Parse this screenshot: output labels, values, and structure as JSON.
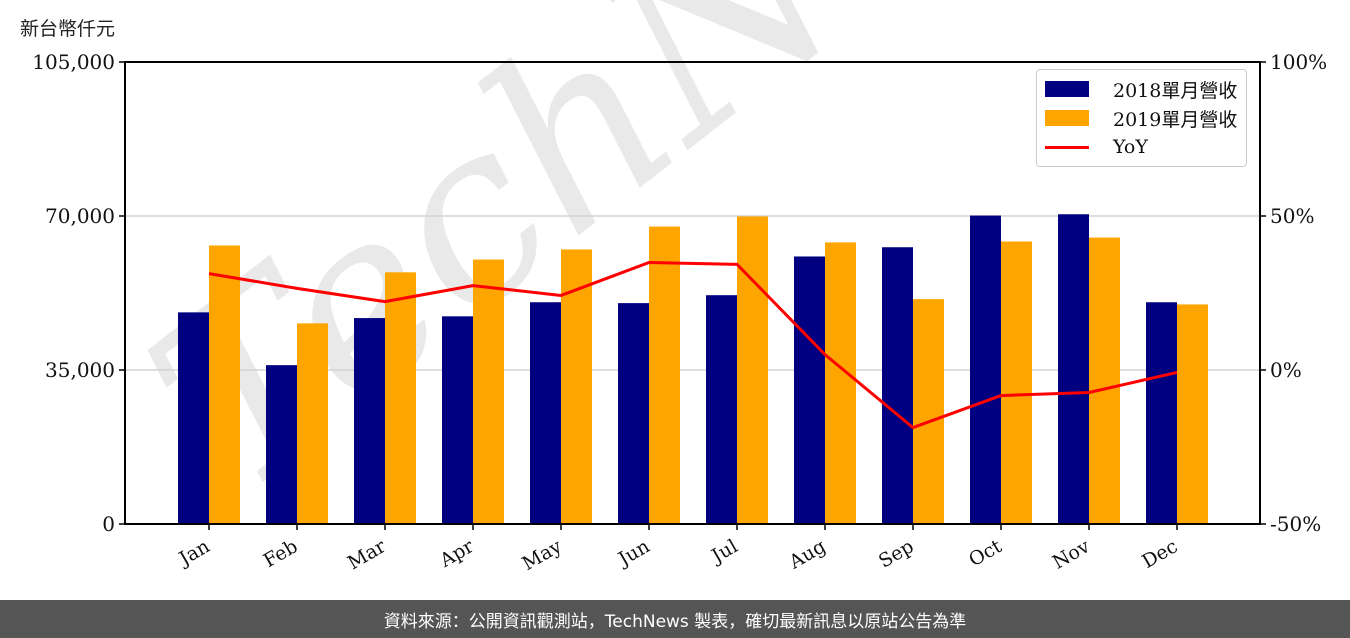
{
  "chart_data": {
    "type": "bar",
    "title": "",
    "ylabel": "新台幣仟元",
    "xlabel": "",
    "categories": [
      "Jan",
      "Feb",
      "Mar",
      "Apr",
      "May",
      "Jun",
      "Jul",
      "Aug",
      "Sep",
      "Oct",
      "Nov",
      "Dec"
    ],
    "series": [
      {
        "name": "2018單月營收",
        "type": "bar",
        "axis": "left",
        "color": "#000080",
        "values": [
          48100,
          36100,
          46800,
          47200,
          50400,
          50200,
          52000,
          60800,
          62900,
          70100,
          70400,
          50400
        ]
      },
      {
        "name": "2019單月營收",
        "type": "bar",
        "axis": "left",
        "color": "#FFA500",
        "values": [
          63300,
          45600,
          57200,
          60100,
          62400,
          67600,
          69900,
          64000,
          51100,
          64200,
          65100,
          49900
        ]
      },
      {
        "name": "YoY",
        "type": "line",
        "axis": "right",
        "color": "#FF0000",
        "unit": "%",
        "values": [
          31.3,
          26.5,
          22.2,
          27.4,
          24.2,
          34.9,
          34.3,
          5.0,
          -18.7,
          -8.3,
          -7.3,
          -0.8
        ]
      }
    ],
    "ylim": [
      0,
      105000
    ],
    "yticks": [
      0,
      35000,
      70000,
      105000
    ],
    "ytick_labels": [
      "0",
      "35,000",
      "70,000",
      "105,000"
    ],
    "y2lim": [
      -50,
      100
    ],
    "y2ticks": [
      -50,
      0,
      50,
      100
    ],
    "y2tick_labels": [
      "-50%",
      "0%",
      "50%",
      "100%"
    ],
    "grid": "horizontal",
    "legend_position": "upper right",
    "watermark": "TechNews"
  },
  "header": {
    "unit_label": "新台幣仟元"
  },
  "legend": {
    "items": [
      {
        "label": "2018單月營收",
        "color": "#000080",
        "kind": "bar"
      },
      {
        "label": "2019單月營收",
        "color": "#FFA500",
        "kind": "bar"
      },
      {
        "label": "YoY",
        "color": "#FF0000",
        "kind": "line"
      }
    ]
  },
  "footer": {
    "text": "資料來源：公開資訊觀測站，TechNews 製表，確切最新訊息以原站公告為準"
  }
}
